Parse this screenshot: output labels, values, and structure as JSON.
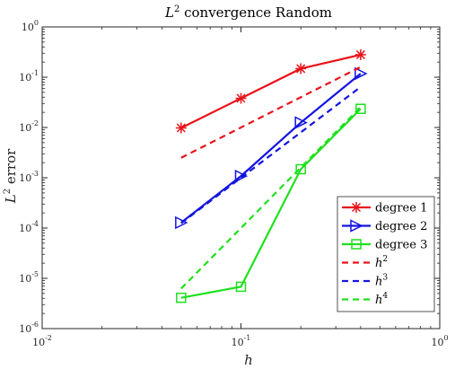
{
  "chart_data": {
    "type": "line",
    "title": "L² convergence Random",
    "title_parts": {
      "base": "L",
      "sup": "2",
      "rest": " convergence Random"
    },
    "xlabel": "h",
    "ylabel": "L² error",
    "ylabel_parts": {
      "base": "L",
      "sup": "2",
      "rest": " error"
    },
    "x_scale": "log",
    "y_scale": "log",
    "xlim": [
      0.01,
      1
    ],
    "ylim": [
      1e-06,
      1
    ],
    "x_ticks": [
      {
        "value": 0.01,
        "base": "10",
        "exp": "-2"
      },
      {
        "value": 0.1,
        "base": "10",
        "exp": "-1"
      },
      {
        "value": 1,
        "base": "10",
        "exp": "0"
      }
    ],
    "y_ticks": [
      {
        "value": 1e-06,
        "base": "10",
        "exp": "-6"
      },
      {
        "value": 1e-05,
        "base": "10",
        "exp": "-5"
      },
      {
        "value": 0.0001,
        "base": "10",
        "exp": "-4"
      },
      {
        "value": 0.001,
        "base": "10",
        "exp": "-3"
      },
      {
        "value": 0.01,
        "base": "10",
        "exp": "-2"
      },
      {
        "value": 0.1,
        "base": "10",
        "exp": "-1"
      },
      {
        "value": 1,
        "base": "10",
        "exp": "0"
      }
    ],
    "grid": false,
    "legend_position": "bottom-right",
    "series": [
      {
        "name": "degree 1",
        "label_base": "degree 1",
        "style": "solid",
        "marker": "asterisk",
        "color": "#e8141a",
        "x": [
          0.05,
          0.1,
          0.2,
          0.4
        ],
        "y": [
          0.0098,
          0.038,
          0.148,
          0.28
        ]
      },
      {
        "name": "degree 2",
        "label_base": "degree 2",
        "style": "solid",
        "marker": "triangle-right",
        "color": "#1414e0",
        "x": [
          0.05,
          0.1,
          0.2,
          0.4
        ],
        "y": [
          0.000128,
          0.00108,
          0.0125,
          0.118
        ]
      },
      {
        "name": "degree 3",
        "label_base": "degree 3",
        "style": "solid",
        "marker": "square",
        "color": "#1ee01e",
        "x": [
          0.05,
          0.1,
          0.2,
          0.4
        ],
        "y": [
          4.1e-06,
          6.8e-06,
          0.00148,
          0.0235
        ]
      },
      {
        "name": "h²",
        "label_base": "h",
        "label_sup": "2",
        "style": "dashed",
        "marker": "none",
        "color": "#e8141a",
        "x": [
          0.05,
          0.4
        ],
        "y": [
          0.0025,
          0.16
        ]
      },
      {
        "name": "h³",
        "label_base": "h",
        "label_sup": "3",
        "style": "dashed",
        "marker": "none",
        "color": "#1414e0",
        "x": [
          0.05,
          0.4
        ],
        "y": [
          0.000125,
          0.064
        ]
      },
      {
        "name": "h⁴",
        "label_base": "h",
        "label_sup": "4",
        "style": "dashed",
        "marker": "none",
        "color": "#1ee01e",
        "x": [
          0.05,
          0.4
        ],
        "y": [
          6.25e-06,
          0.0256
        ]
      }
    ]
  }
}
